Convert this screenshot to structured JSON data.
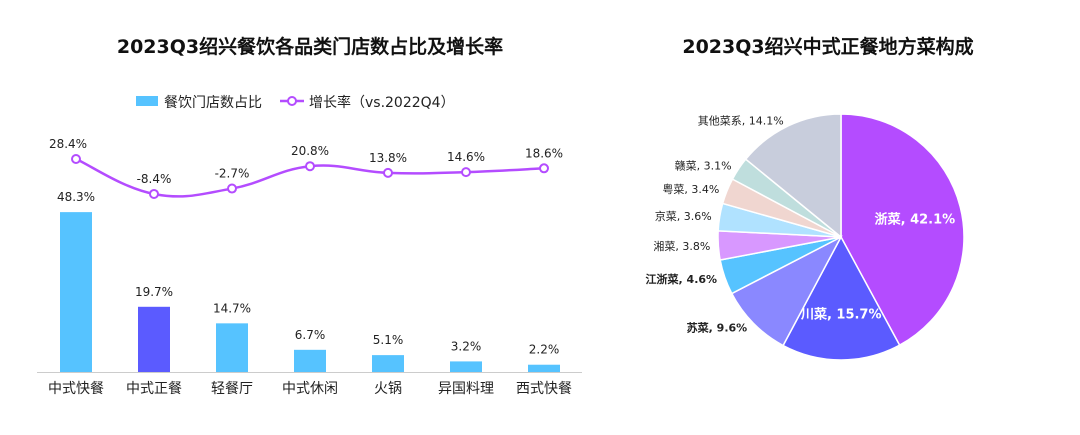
{
  "chart_data": [
    {
      "type": "bar+line",
      "title": "2023Q3绍兴餐饮各品类门店数占比及增长率",
      "categories": [
        "中式快餐",
        "中式正餐",
        "轻餐厅",
        "中式休闲",
        "火锅",
        "异国料理",
        "西式快餐"
      ],
      "series": [
        {
          "name": "餐饮门店数占比",
          "type": "bar",
          "values": [
            48.3,
            19.7,
            14.7,
            6.7,
            5.1,
            3.2,
            2.2
          ],
          "labels": [
            "48.3%",
            "19.7%",
            "14.7%",
            "6.7%",
            "5.1%",
            "3.2%",
            "2.2%"
          ],
          "color": "#56c3ff",
          "highlight_color": "#5b5bff",
          "highlight_index": 1
        },
        {
          "name": "增长率（vs.2022Q4）",
          "type": "line",
          "values": [
            28.4,
            -8.4,
            -2.7,
            20.8,
            13.8,
            14.6,
            18.6
          ],
          "labels": [
            "28.4%",
            "-8.4%",
            "-2.7%",
            "20.8%",
            "13.8%",
            "14.6%",
            "18.6%"
          ],
          "color": "#b44cff"
        }
      ],
      "legend": "top-center"
    },
    {
      "type": "pie",
      "title": "2023Q3绍兴中式正餐地方菜构成",
      "slices": [
        {
          "label": "浙菜, 42.1%",
          "value": 42.1,
          "color": "#b44cff",
          "inside": true
        },
        {
          "label": "川菜, 15.7%",
          "value": 15.7,
          "color": "#5b5bff",
          "inside": true
        },
        {
          "label": "苏菜, 9.6%",
          "value": 9.6,
          "color": "#8a88ff",
          "bold": true
        },
        {
          "label": "江浙菜, 4.6%",
          "value": 4.6,
          "color": "#56c3ff",
          "bold": true
        },
        {
          "label": "湘菜, 3.8%",
          "value": 3.8,
          "color": "#d898ff"
        },
        {
          "label": "京菜, 3.6%",
          "value": 3.6,
          "color": "#b0e2ff"
        },
        {
          "label": "粤菜, 3.4%",
          "value": 3.4,
          "color": "#f0d6d0"
        },
        {
          "label": "赣菜, 3.1%",
          "value": 3.1,
          "color": "#bfdedd"
        },
        {
          "label": "其他菜系, 14.1%",
          "value": 14.1,
          "color": "#c8cddc"
        }
      ]
    }
  ]
}
